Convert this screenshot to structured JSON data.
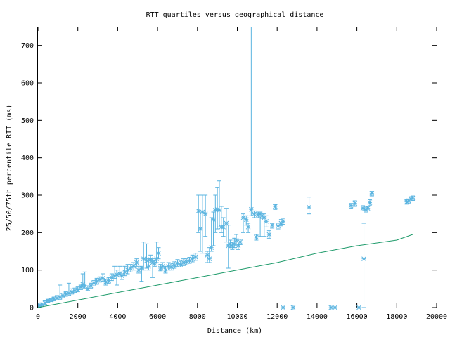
{
  "chart_data": {
    "type": "scatter",
    "title": "RTT quartiles versus geographical distance",
    "xlabel": "Distance (km)",
    "ylabel": "25/50/75th percentile RTT (ms)",
    "xlim": [
      0,
      20000
    ],
    "ylim": [
      0,
      750
    ],
    "xticks": [
      0,
      2000,
      4000,
      6000,
      8000,
      10000,
      12000,
      14000,
      16000,
      18000,
      20000
    ],
    "yticks": [
      0,
      100,
      200,
      300,
      400,
      500,
      600,
      700
    ],
    "grid": false,
    "colors": {
      "points": "#5ab4e0",
      "reference_line": "#1f9b6b"
    },
    "series": [
      {
        "style": "errorbars-points",
        "points": [
          [
            100,
            5,
            2,
            8
          ],
          [
            200,
            8,
            5,
            12
          ],
          [
            350,
            12,
            8,
            18
          ],
          [
            500,
            18,
            14,
            22
          ],
          [
            650,
            20,
            16,
            24
          ],
          [
            800,
            22,
            18,
            28
          ],
          [
            950,
            25,
            20,
            32
          ],
          [
            1100,
            28,
            22,
            60
          ],
          [
            1250,
            32,
            28,
            38
          ],
          [
            1400,
            36,
            30,
            42
          ],
          [
            1550,
            38,
            32,
            65
          ],
          [
            1700,
            42,
            36,
            50
          ],
          [
            1850,
            45,
            40,
            52
          ],
          [
            2000,
            48,
            42,
            55
          ],
          [
            2150,
            55,
            48,
            60
          ],
          [
            2250,
            62,
            55,
            90
          ],
          [
            2350,
            58,
            52,
            95
          ],
          [
            2500,
            50,
            45,
            58
          ],
          [
            2650,
            58,
            52,
            65
          ],
          [
            2800,
            65,
            58,
            72
          ],
          [
            2950,
            70,
            62,
            78
          ],
          [
            3100,
            75,
            68,
            82
          ],
          [
            3250,
            78,
            70,
            90
          ],
          [
            3400,
            68,
            60,
            75
          ],
          [
            3550,
            72,
            65,
            80
          ],
          [
            3700,
            80,
            72,
            90
          ],
          [
            3850,
            85,
            78,
            110
          ],
          [
            3950,
            88,
            60,
            100
          ],
          [
            4100,
            90,
            82,
            110
          ],
          [
            4200,
            85,
            75,
            95
          ],
          [
            4350,
            95,
            85,
            110
          ],
          [
            4500,
            100,
            90,
            115
          ],
          [
            4650,
            105,
            95,
            115
          ],
          [
            4800,
            110,
            100,
            120
          ],
          [
            4950,
            120,
            110,
            130
          ],
          [
            5050,
            100,
            92,
            108
          ],
          [
            5200,
            105,
            70,
            110
          ],
          [
            5300,
            130,
            100,
            175
          ],
          [
            5450,
            125,
            105,
            170
          ],
          [
            5550,
            110,
            100,
            130
          ],
          [
            5650,
            128,
            120,
            140
          ],
          [
            5750,
            120,
            80,
            130
          ],
          [
            5850,
            118,
            110,
            125
          ],
          [
            5950,
            130,
            120,
            175
          ],
          [
            6050,
            145,
            130,
            160
          ],
          [
            6150,
            105,
            98,
            115
          ],
          [
            6250,
            110,
            100,
            120
          ],
          [
            6400,
            100,
            92,
            110
          ],
          [
            6550,
            110,
            100,
            120
          ],
          [
            6700,
            108,
            100,
            118
          ],
          [
            6850,
            112,
            105,
            122
          ],
          [
            7000,
            118,
            110,
            128
          ],
          [
            7150,
            115,
            108,
            124
          ],
          [
            7300,
            120,
            112,
            130
          ],
          [
            7450,
            122,
            114,
            130
          ],
          [
            7600,
            125,
            118,
            134
          ],
          [
            7750,
            130,
            122,
            140
          ],
          [
            7900,
            135,
            126,
            145
          ],
          [
            8050,
            258,
            200,
            300
          ],
          [
            8150,
            210,
            150,
            255
          ],
          [
            8250,
            255,
            145,
            300
          ],
          [
            8400,
            250,
            190,
            300
          ],
          [
            8500,
            140,
            120,
            150
          ],
          [
            8600,
            130,
            120,
            160
          ],
          [
            8700,
            160,
            150,
            240
          ],
          [
            8800,
            235,
            165,
            255
          ],
          [
            8900,
            260,
            200,
            300
          ],
          [
            9000,
            262,
            210,
            320
          ],
          [
            9100,
            260,
            215,
            338
          ],
          [
            9200,
            215,
            200,
            270
          ],
          [
            9300,
            215,
            190,
            240
          ],
          [
            9450,
            225,
            175,
            265
          ],
          [
            9550,
            165,
            105,
            220
          ],
          [
            9650,
            170,
            160,
            180
          ],
          [
            9750,
            165,
            155,
            175
          ],
          [
            9850,
            170,
            160,
            185
          ],
          [
            9950,
            180,
            165,
            195
          ],
          [
            10050,
            165,
            155,
            175
          ],
          [
            10150,
            175,
            168,
            182
          ],
          [
            10300,
            240,
            200,
            250
          ],
          [
            10450,
            235,
            220,
            245
          ],
          [
            10550,
            215,
            200,
            225
          ],
          [
            10700,
            262,
            245,
            760
          ],
          [
            10850,
            250,
            240,
            258
          ],
          [
            10950,
            188,
            180,
            195
          ],
          [
            11050,
            248,
            240,
            255
          ],
          [
            11150,
            250,
            190,
            255
          ],
          [
            11250,
            245,
            238,
            252
          ],
          [
            11350,
            240,
            190,
            250
          ],
          [
            11450,
            230,
            215,
            245
          ],
          [
            11600,
            195,
            185,
            205
          ],
          [
            11750,
            220,
            212,
            225
          ],
          [
            11900,
            270,
            262,
            275
          ],
          [
            12050,
            218,
            210,
            225
          ],
          [
            12200,
            225,
            218,
            235
          ],
          [
            12300,
            230,
            222,
            238
          ],
          [
            12300,
            0,
            0,
            0
          ],
          [
            12800,
            0,
            0,
            0
          ],
          [
            13600,
            268,
            250,
            295
          ],
          [
            14700,
            0,
            0,
            0
          ],
          [
            14900,
            0,
            0,
            0
          ],
          [
            15700,
            272,
            265,
            278
          ],
          [
            15900,
            278,
            270,
            285
          ],
          [
            16100,
            0,
            0,
            0
          ],
          [
            16300,
            265,
            258,
            272
          ],
          [
            16350,
            130,
            0,
            225
          ],
          [
            16450,
            262,
            255,
            268
          ],
          [
            16550,
            265,
            258,
            270
          ],
          [
            16650,
            280,
            272,
            288
          ],
          [
            16750,
            305,
            298,
            310
          ],
          [
            18500,
            282,
            276,
            288
          ],
          [
            18600,
            285,
            279,
            290
          ],
          [
            18700,
            290,
            284,
            296
          ],
          [
            18800,
            292,
            286,
            298
          ]
        ]
      },
      {
        "style": "line",
        "x": [
          0,
          2000,
          4000,
          6000,
          8000,
          10000,
          12000,
          14000,
          16000,
          18000,
          18800
        ],
        "y": [
          0,
          20,
          40,
          60,
          80,
          100,
          120,
          145,
          165,
          180,
          195
        ]
      }
    ]
  }
}
